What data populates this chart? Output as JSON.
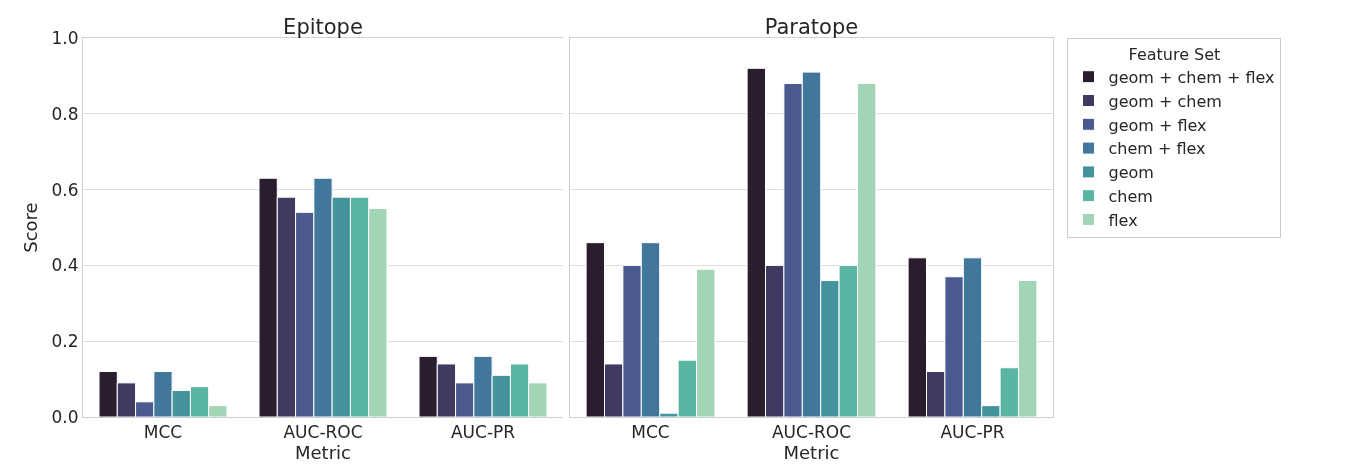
{
  "chart_data": [
    {
      "type": "bar",
      "title": "Epitope",
      "xlabel": "Metric",
      "ylabel": "Score",
      "categories": [
        "MCC",
        "AUC-ROC",
        "AUC-PR"
      ],
      "ylim": [
        0,
        1
      ],
      "yticks": [
        {
          "value": 0,
          "label": "0.0"
        },
        0.2,
        0.4,
        0.6,
        0.8,
        {
          "value": 1,
          "label": "1.0"
        }
      ],
      "grid": "y",
      "legend": false,
      "series": [
        {
          "color": "#2a1d2e",
          "values": [
            0.12,
            0.63,
            0.16
          ]
        },
        {
          "color": "#403a63",
          "values": [
            0.09,
            0.58,
            0.14
          ]
        },
        {
          "color": "#4a5a8e",
          "values": [
            0.04,
            0.54,
            0.09
          ]
        },
        {
          "color": "#41779a",
          "values": [
            0.12,
            0.63,
            0.16
          ]
        },
        {
          "color": "#42939c",
          "values": [
            0.07,
            0.58,
            0.11
          ]
        },
        {
          "color": "#5ab5a3",
          "values": [
            0.08,
            0.58,
            0.14
          ]
        },
        {
          "color": "#a2d5b6",
          "values": [
            0.03,
            0.55,
            0.09
          ]
        }
      ]
    },
    {
      "type": "bar",
      "title": "Paratope",
      "xlabel": "Metric",
      "categories": [
        "MCC",
        "AUC-ROC",
        "AUC-PR"
      ],
      "ylim": [
        0,
        1
      ],
      "grid": "y",
      "tick_labels": "x",
      "legend": "right",
      "legend_title": "Feature Set",
      "series": [
        {
          "name": "geom + chem + flex",
          "color": "#2a1d2e",
          "values": [
            0.46,
            0.92,
            0.42
          ]
        },
        {
          "name": "geom + chem",
          "color": "#403a63",
          "values": [
            0.14,
            0.4,
            0.12
          ]
        },
        {
          "name": "geom + flex",
          "color": "#4a5a8e",
          "values": [
            0.4,
            0.88,
            0.37
          ]
        },
        {
          "name": "chem + flex",
          "color": "#41779a",
          "values": [
            0.46,
            0.91,
            0.42
          ]
        },
        {
          "name": "geom",
          "color": "#42939c",
          "values": [
            0.01,
            0.36,
            0.03
          ]
        },
        {
          "name": "chem",
          "color": "#5ab5a3",
          "values": [
            0.15,
            0.4,
            0.13
          ]
        },
        {
          "name": "flex",
          "color": "#a2d5b6",
          "values": [
            0.39,
            0.88,
            0.36
          ]
        }
      ]
    }
  ]
}
